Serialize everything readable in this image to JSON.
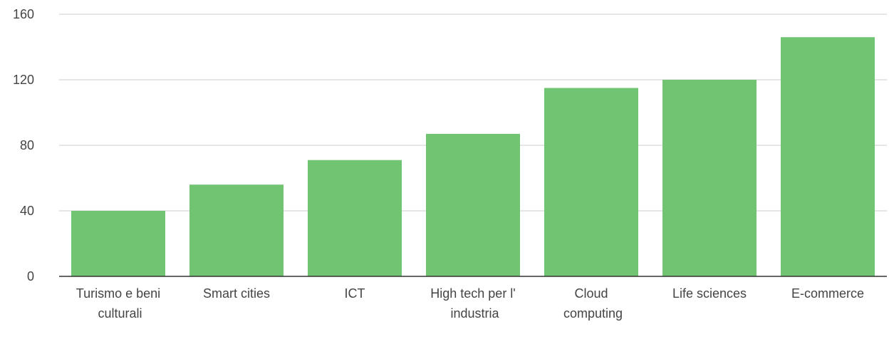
{
  "chart_data": {
    "type": "bar",
    "categories": [
      "Turismo e beni culturali",
      "Smart cities",
      "ICT",
      "High tech per l' industria",
      "Cloud computing",
      "Life sciences",
      "E-commerce"
    ],
    "values": [
      40,
      56,
      71,
      87,
      115,
      120,
      146
    ],
    "color": "#71c472",
    "ylim": [
      0,
      160
    ],
    "yticks": [
      0,
      40,
      80,
      120,
      160
    ],
    "grid": true
  }
}
